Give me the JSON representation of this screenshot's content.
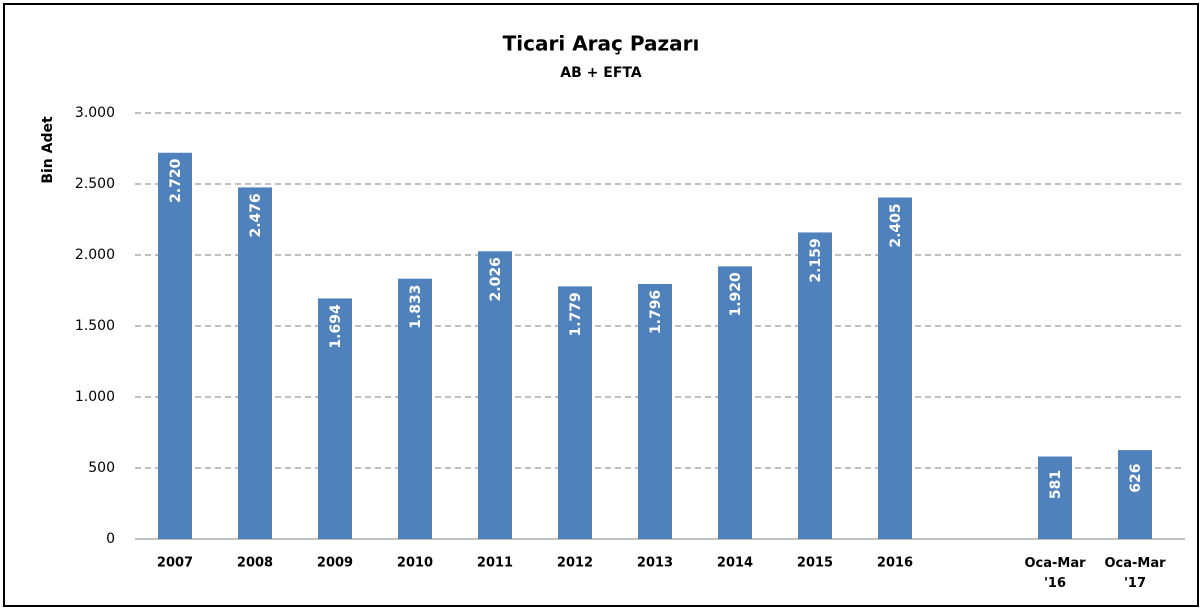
{
  "chart_data": {
    "type": "bar",
    "title": "Ticari Araç Pazarı",
    "subtitle": "AB + EFTA",
    "y_label": "Bin Adet",
    "categories": [
      "2007",
      "2008",
      "2009",
      "2010",
      "2011",
      "2012",
      "2013",
      "2014",
      "2015",
      "2016",
      null,
      "Oca-Mar '16",
      "Oca-Mar '17"
    ],
    "values": [
      2720,
      2476,
      1694,
      1833,
      2026,
      1779,
      1796,
      1920,
      2159,
      2405,
      null,
      581,
      626
    ],
    "value_labels": [
      "2.720",
      "2.476",
      "1.694",
      "1.833",
      "2.026",
      "1.779",
      "1.796",
      "1.920",
      "2.159",
      "2.405",
      null,
      "581",
      "626"
    ],
    "color": "#4f81bd",
    "ylim": [
      0,
      3000
    ],
    "yticks": [
      0,
      500,
      {
        "value": 1000,
        "label": "1.000"
      },
      {
        "value": 1500,
        "label": "1.500"
      },
      {
        "value": 2000,
        "label": "2.000"
      },
      {
        "value": 2500,
        "label": "2.500"
      },
      {
        "value": 3000,
        "label": "3.000"
      }
    ],
    "grid": true
  }
}
